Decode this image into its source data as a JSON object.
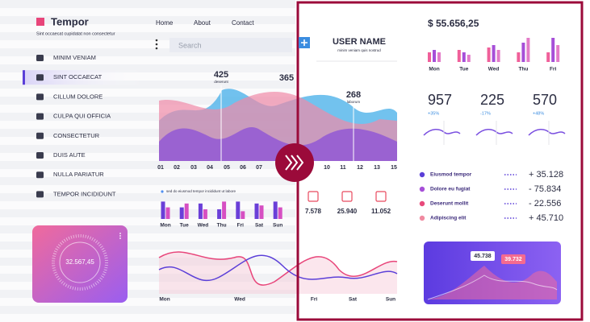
{
  "sidebar": {
    "brand": "Tempor",
    "tagline": "Sint occaecat cupidatat non consectetur",
    "menu": [
      "MINIM VENIAM",
      "SINT OCCAECAT",
      "CILLUM DOLORE",
      "CULPA QUI OFFICIA",
      "CONSECTETUR",
      "DUIS AUTE",
      "NULLA PARIATUR",
      "TEMPOR INCIDIDUNT"
    ],
    "active": 1
  },
  "nav": [
    "Home",
    "About",
    "Contact"
  ],
  "search_placeholder": "Search",
  "gauge": "32.567,45",
  "area_chart": {
    "callouts": [
      {
        "value": "425",
        "label": "deserunt"
      },
      {
        "value": "365"
      },
      {
        "value": "268",
        "label": "laborum"
      }
    ],
    "x_labels": [
      "01",
      "02",
      "03",
      "04",
      "05",
      "06",
      "07",
      "10",
      "11",
      "12",
      "13",
      "15"
    ]
  },
  "legend_note": "sed do eiusmod tempor incididunt ut labore",
  "day_bars": {
    "categories": [
      "Mon",
      "Tue",
      "Wed",
      "Thu",
      "Fri",
      "Sat",
      "Sun"
    ],
    "series": [
      {
        "color": "#6a3fd8",
        "values": [
          9,
          6,
          8,
          5,
          9,
          8,
          9
        ]
      },
      {
        "color": "#d64fc2",
        "values": [
          6,
          8,
          5,
          9,
          4,
          7,
          6
        ]
      }
    ]
  },
  "line_chart": {
    "x_labels": [
      "Mon",
      "Wed",
      "Fri",
      "Sat",
      "Sun"
    ]
  },
  "user": {
    "name": "USER NAME",
    "subtitle": "minim veniam quis nostrud"
  },
  "balance": "$ 55.656,25",
  "weekly_bars": {
    "categories": [
      "Mon",
      "Tue",
      "Wed",
      "Thu",
      "Fri"
    ],
    "series": [
      {
        "color": "#f0609a",
        "values": [
          4,
          5,
          6,
          4,
          4
        ]
      },
      {
        "color": "#a64fd8",
        "values": [
          5,
          4,
          7,
          8,
          10
        ]
      },
      {
        "color": "#e37bc8",
        "values": [
          4,
          3,
          5,
          10,
          7
        ]
      }
    ]
  },
  "stats": [
    {
      "value": "957",
      "change": "+35%"
    },
    {
      "value": "225",
      "change": "-17%"
    },
    {
      "value": "570",
      "change": "+48%"
    }
  ],
  "devices": [
    "7.578",
    "25.940",
    "11.052"
  ],
  "ranking": [
    {
      "label": "Eiusmod tempor",
      "value": "+ 35.128",
      "color": "#5b3fd8"
    },
    {
      "label": "Dolore eu fugiat",
      "value": "- 75.834",
      "color": "#a64fd8"
    },
    {
      "label": "Deserunt mollit",
      "value": "- 22.556",
      "color": "#e84a7b"
    },
    {
      "label": "Adipiscing elit",
      "value": "+ 45.710",
      "color": "#f08aa0"
    }
  ],
  "card_labels": [
    "45.738",
    "39.732"
  ]
}
